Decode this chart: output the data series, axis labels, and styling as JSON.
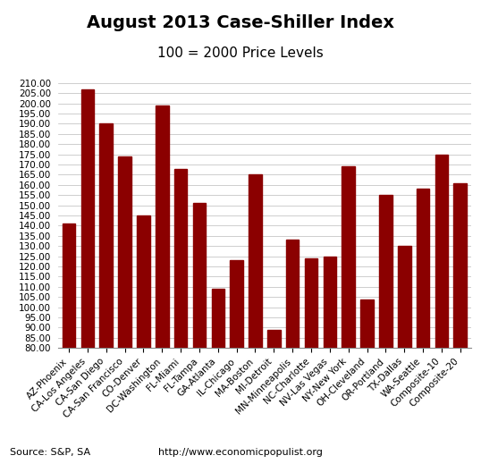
{
  "title": "August 2013 Case-Shiller Index",
  "subtitle": "100 = 2000 Price Levels",
  "categories": [
    "AZ-Phoenix",
    "CA-Los Angeles",
    "CA-San Diego",
    "CA-San Francisco",
    "CO-Denver",
    "DC-Washington",
    "FL-Miami",
    "FL-Tampa",
    "GA-Atlanta",
    "IL-Chicago",
    "MA-Boston",
    "MI-Detroit",
    "MN-Minneapolis",
    "NC-Charlotte",
    "NV-Las Vegas",
    "NY-New York",
    "OH-Cleveland",
    "OR-Portland",
    "TX-Dallas",
    "WA-Seattle",
    "Composite-10",
    "Composite-20"
  ],
  "values": [
    141.0,
    207.0,
    190.0,
    174.0,
    145.0,
    199.0,
    168.0,
    151.0,
    109.0,
    123.0,
    165.0,
    89.0,
    133.0,
    124.0,
    125.0,
    169.0,
    104.0,
    155.0,
    130.0,
    158.0,
    175.0,
    161.0
  ],
  "bar_color": "#8B0000",
  "ylim": [
    80,
    212
  ],
  "ytick_min": 80,
  "ytick_max": 210,
  "ytick_step": 5,
  "source_text": "Source: S&P, SA",
  "url_text": "http://www.economicpopulist.org",
  "background_color": "#ffffff",
  "grid_color": "#bbbbbb",
  "title_fontsize": 14,
  "subtitle_fontsize": 11,
  "tick_label_fontsize": 7.5,
  "source_fontsize": 8,
  "url_fontsize": 8
}
